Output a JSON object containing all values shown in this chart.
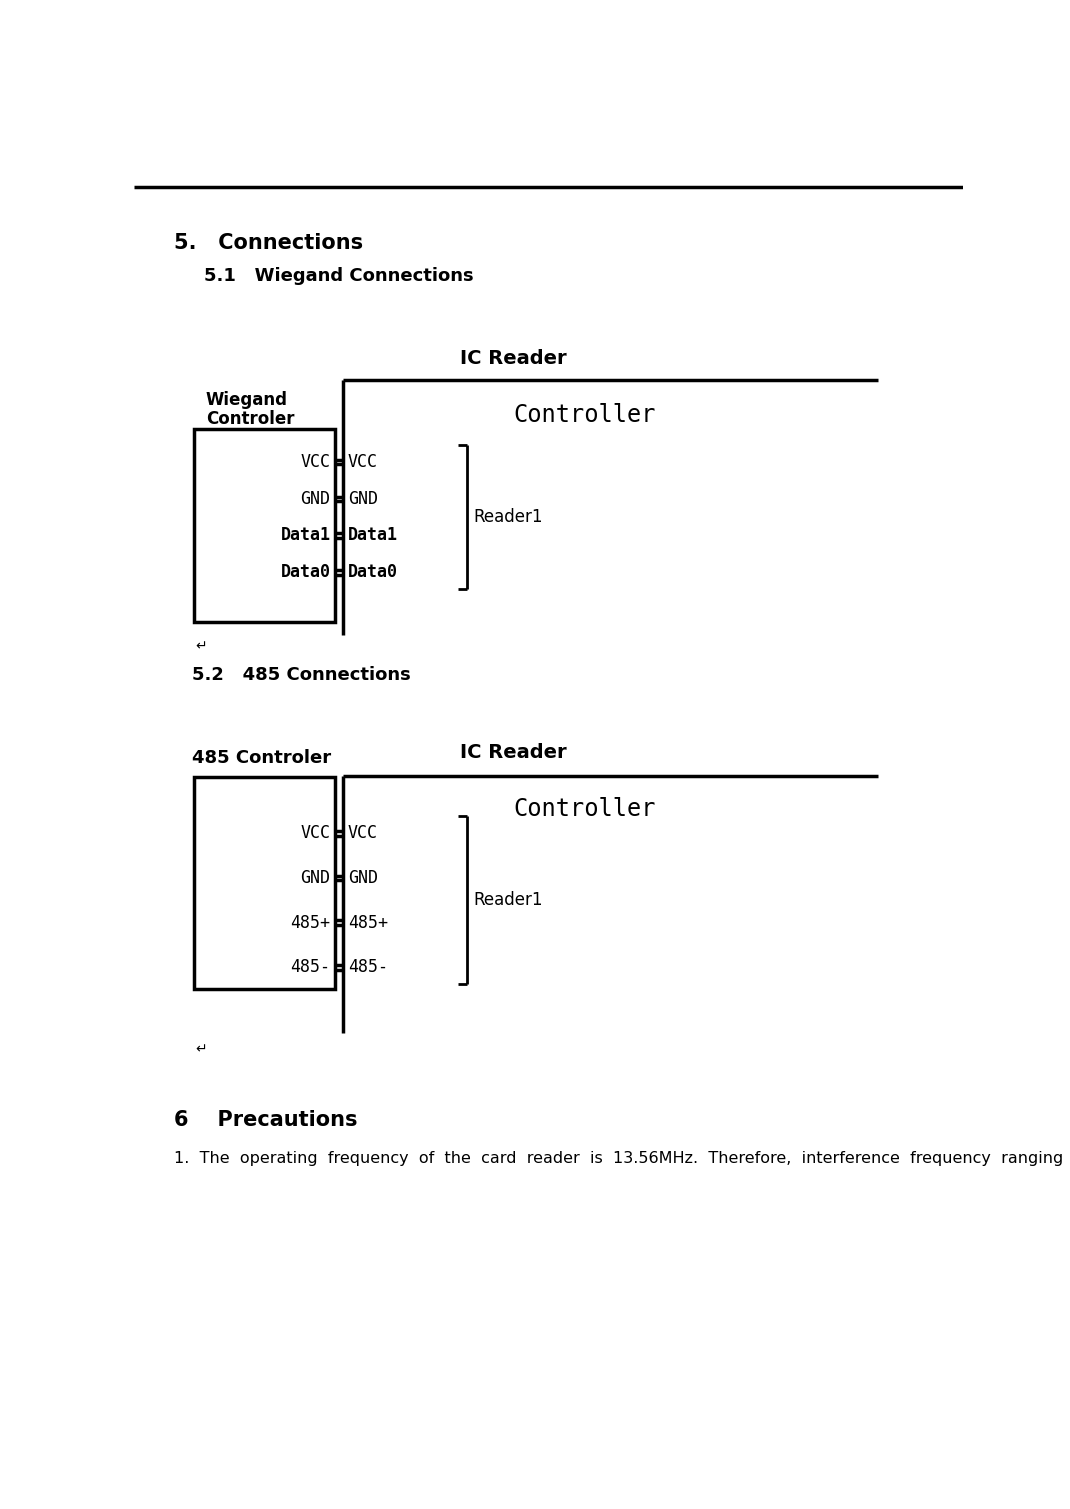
{
  "title_section5": "5.   Connections",
  "title_section51": "5.1   Wiegand Connections",
  "title_section52": "5.2   485 Connections",
  "title_section6": "6    Precautions",
  "precaution1": "1.  The  operating  frequency  of  the  card  reader  is  13.56MHz.  Therefore,  interference  frequency  ranging",
  "diagram1": {
    "ic_reader_label": "IC Reader",
    "left_label_line1": "Wiegand",
    "left_label_line2": "Controler",
    "controller_label": "Controller",
    "reader_label": "Reader1",
    "pins_left": [
      "VCC",
      "GND",
      "Data1",
      "Data0"
    ],
    "pins_right": [
      "VCC",
      "GND",
      "Data1",
      "Data0"
    ],
    "pins_bold": [
      false,
      false,
      true,
      true
    ]
  },
  "diagram2": {
    "ic_reader_label": "IC Reader",
    "left_label_line1": "485 Controler",
    "controller_label": "Controller",
    "reader_label": "Reader1",
    "pins_left": [
      "VCC",
      "GND",
      "485+",
      "485-"
    ],
    "pins_right": [
      "VCC",
      "GND",
      "485+",
      "485-"
    ],
    "pins_bold": [
      false,
      false,
      false,
      false
    ]
  },
  "bg_color": "#ffffff",
  "text_color": "#000000",
  "line_color": "#000000"
}
